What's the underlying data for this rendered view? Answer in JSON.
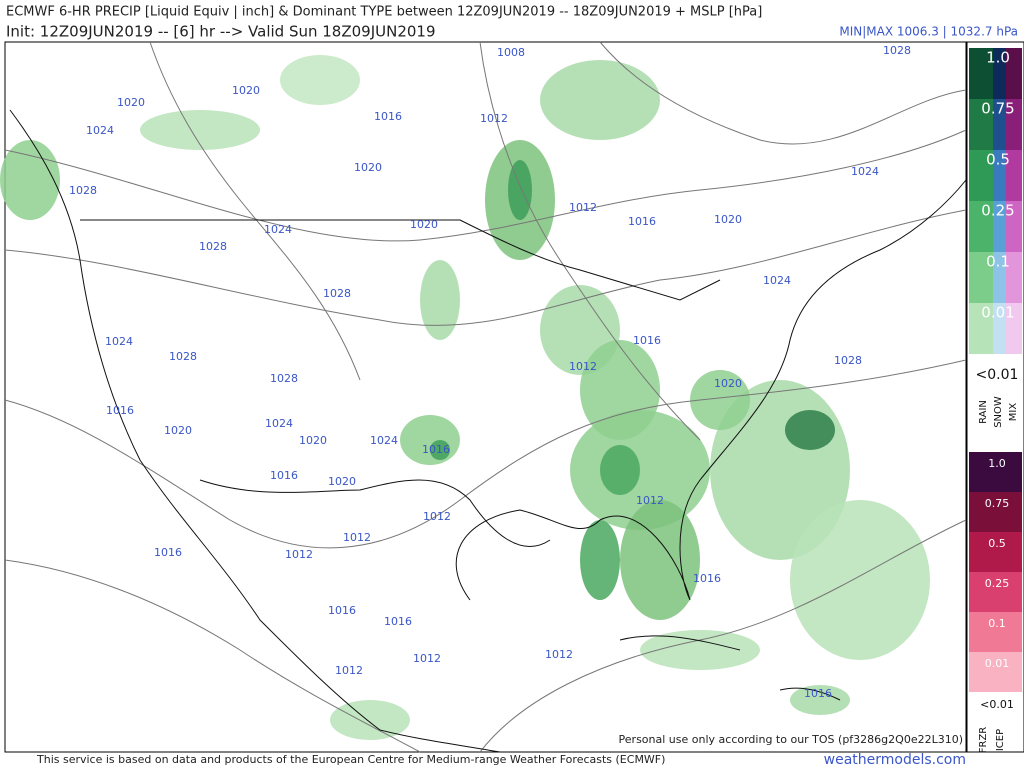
{
  "header": {
    "title": "ECMWF 6-HR PRECIP [Liquid Equiv | inch] & Dominant TYPE between 12Z09JUN2019 -- 18Z09JUN2019 + MSLP [hPa]",
    "subtitle": "Init: 12Z09JUN2019 -- [6] hr --> Valid Sun 18Z09JUN2019",
    "minmax": "MIN|MAX 1006.3 | 1032.7 hPa"
  },
  "isobar_labels": [
    "1008",
    "1020",
    "1020",
    "1024",
    "1016",
    "1012",
    "1028",
    "1020",
    "1028",
    "1012",
    "1016",
    "1020",
    "1024",
    "1020",
    "1024",
    "1028",
    "1028",
    "1024",
    "1024",
    "1028",
    "1016",
    "1012",
    "1028",
    "1028",
    "1020",
    "1016",
    "1020",
    "1024",
    "1020",
    "1024",
    "1016",
    "1016",
    "1020",
    "1012",
    "1012",
    "1012",
    "1012",
    "1016",
    "1016",
    "1016",
    "1016",
    "1012",
    "1012",
    "1012",
    "1016"
  ],
  "legend": {
    "rain_scale": [
      "1.0",
      "0.75",
      "0.5",
      "0.25",
      "0.1",
      "0.01"
    ],
    "rain_min": "<0.01",
    "types": [
      "RAIN",
      "SNOW",
      "MIX"
    ],
    "ice_scale": [
      "1.0",
      "0.75",
      "0.5",
      "0.25",
      "0.1",
      "0.01"
    ],
    "ice_min": "<0.01",
    "ice_types": [
      "FRZR",
      "ICEP"
    ]
  },
  "footer": {
    "notice": "This service is based on data and products of the European Centre for Medium-range Weather Forecasts (ECMWF)",
    "site": "weathermodels.com",
    "personal_use": "Personal use only according to our TOS (pf3286g2Q0e22L310)"
  }
}
